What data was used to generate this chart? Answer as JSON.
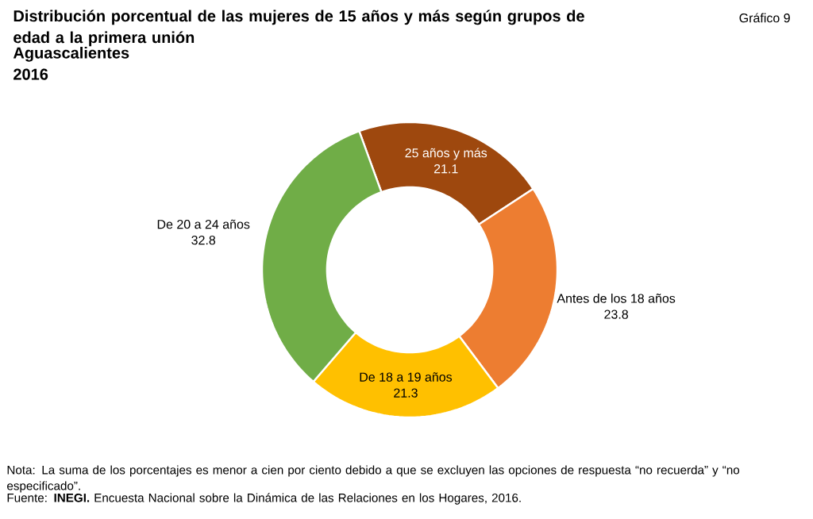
{
  "chart_data": {
    "type": "donut",
    "title": "Distribución porcentual de las mujeres de 15 años y más según grupos de edad a la primera unión",
    "subtitle": "Aguascalientes 2016",
    "categories": [
      "25 años y más",
      "Antes de los 18 años",
      "De 18 a 19 años",
      "De 20 a 24 años"
    ],
    "values": [
      21.1,
      23.8,
      21.3,
      32.8
    ],
    "colors": [
      "#9e480e",
      "#ed7d31",
      "#ffc000",
      "#70ad47"
    ],
    "data_labels": true,
    "annotations": [
      "Gráfico 9",
      "Nota: La suma de los porcentajes es menor a cien por ciento debido a que se excluyen las opciones de respuesta “no recuerda” y “no especificado”.",
      "Fuente: **INEGI.** Encuesta Nacional sobre la Dinámica de las Relaciones en los Hogares, 2016."
    ]
  }
}
